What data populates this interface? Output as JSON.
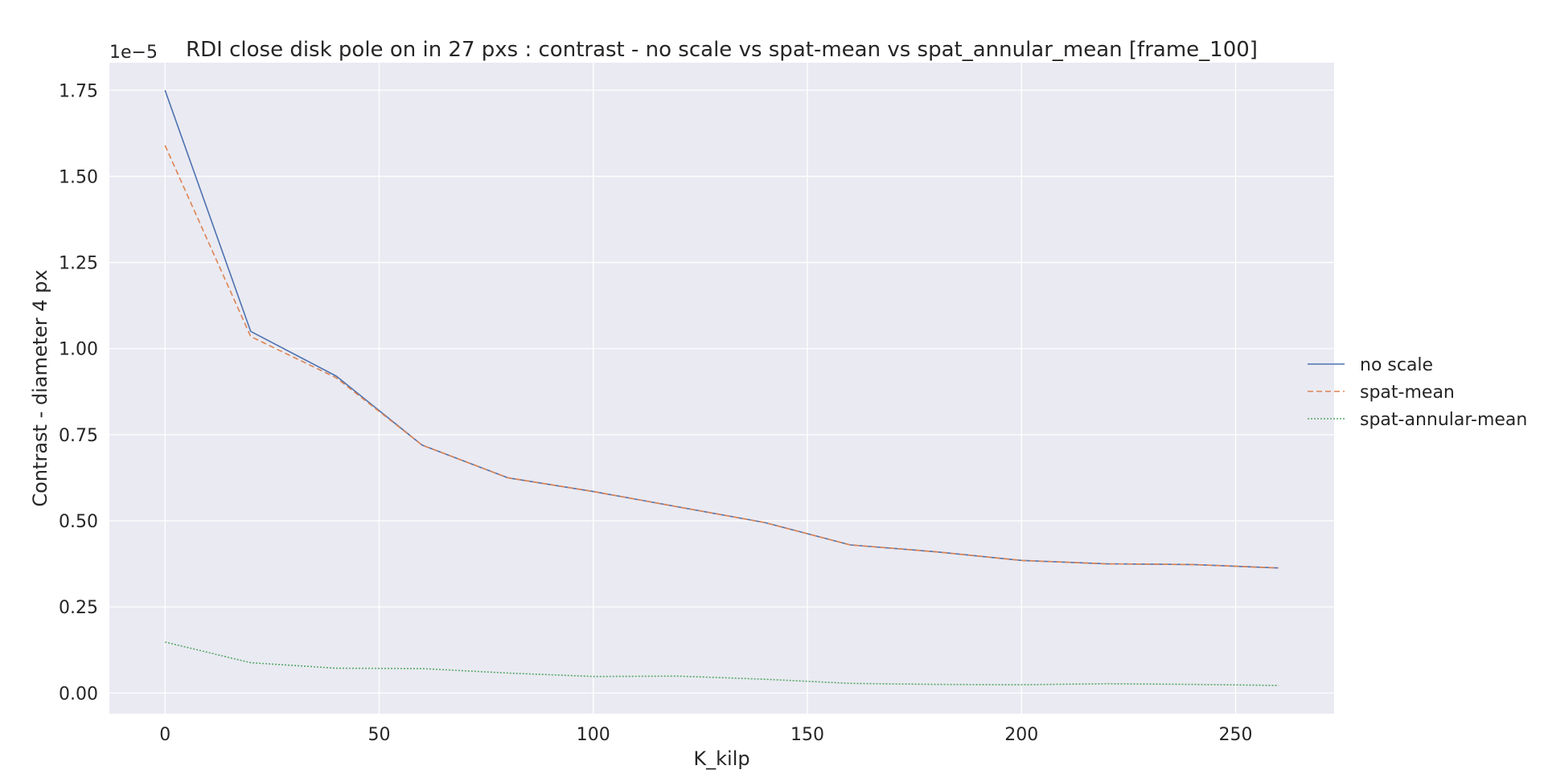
{
  "chart_data": {
    "type": "line",
    "title": "RDI close disk pole on in 27 pxs : contrast - no scale vs spat-mean vs spat_annular_mean [frame_100]",
    "xlabel": "K_kilp",
    "ylabel": "Contrast - diameter 4 px",
    "offset_text": "1e−5",
    "x": [
      0,
      20,
      40,
      60,
      80,
      100,
      120,
      140,
      160,
      180,
      200,
      220,
      240,
      260
    ],
    "xlim": [
      -13,
      273
    ],
    "ylim": [
      -0.06,
      1.83
    ],
    "y_multiplier": "1e-5",
    "xticks": [
      0,
      50,
      100,
      150,
      200,
      250
    ],
    "xtick_labels": [
      "0",
      "50",
      "100",
      "150",
      "200",
      "250"
    ],
    "yticks": [
      0.0,
      0.25,
      0.5,
      0.75,
      1.0,
      1.25,
      1.5,
      1.75
    ],
    "ytick_labels": [
      "0.00",
      "0.25",
      "0.50",
      "0.75",
      "1.00",
      "1.25",
      "1.50",
      "1.75"
    ],
    "grid": true,
    "legend_position": "outside-right",
    "background_color": "#eaeaf2",
    "grid_color": "#ffffff",
    "series": [
      {
        "name": "no scale",
        "color": "#4c72b0",
        "dash": "solid",
        "values": [
          1.75,
          1.05,
          0.92,
          0.72,
          0.625,
          0.585,
          0.54,
          0.495,
          0.43,
          0.41,
          0.385,
          0.375,
          0.373,
          0.363
        ]
      },
      {
        "name": "spat-mean",
        "color": "#dd8452",
        "dash": "dashed",
        "values": [
          1.59,
          1.035,
          0.915,
          0.72,
          0.625,
          0.585,
          0.54,
          0.495,
          0.43,
          0.41,
          0.385,
          0.375,
          0.373,
          0.363
        ]
      },
      {
        "name": "spat-annular-mean",
        "color": "#55a868",
        "dash": "dotted",
        "values": [
          0.148,
          0.088,
          0.072,
          0.071,
          0.058,
          0.048,
          0.049,
          0.04,
          0.028,
          0.025,
          0.024,
          0.027,
          0.025,
          0.022
        ]
      }
    ]
  }
}
